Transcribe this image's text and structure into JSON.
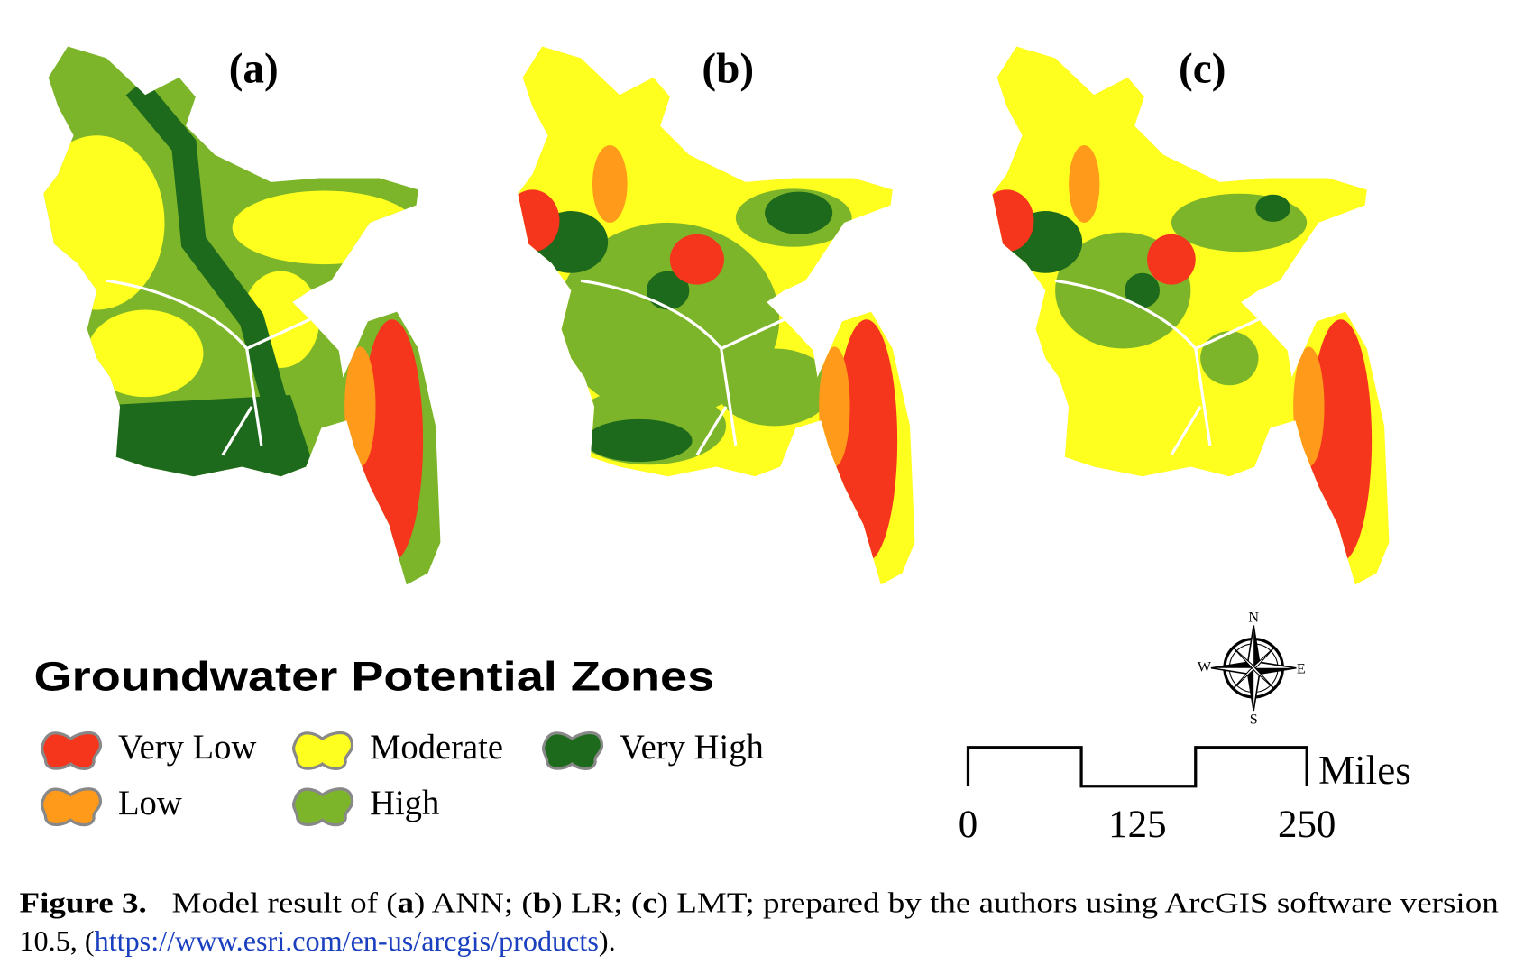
{
  "panels": [
    {
      "label": "(a)"
    },
    {
      "label": "(b)"
    },
    {
      "label": "(c)"
    }
  ],
  "legend": {
    "title": "Groundwater Potential Zones",
    "items": [
      {
        "label": "Very Low",
        "color": "#f5361c"
      },
      {
        "label": "Low",
        "color": "#ff9a1a"
      },
      {
        "label": "Moderate",
        "color": "#ffff1f"
      },
      {
        "label": "High",
        "color": "#7db52a"
      },
      {
        "label": "Very High",
        "color": "#1e6a1c"
      }
    ]
  },
  "compass": {
    "n": "N",
    "s": "S",
    "e": "E",
    "w": "W"
  },
  "scale_bar": {
    "ticks": [
      "0",
      "125",
      "250"
    ],
    "unit": "Miles"
  },
  "caption": {
    "line1": [
      {
        "text": "Figure 3.",
        "bold": true
      },
      {
        "text": "   Model result of ("
      },
      {
        "text": "a",
        "bold": true
      },
      {
        "text": ") ANN; ("
      },
      {
        "text": "b",
        "bold": true
      },
      {
        "text": ") LR; ("
      },
      {
        "text": "c",
        "bold": true
      },
      {
        "text": ") LMT; prepared by the authors using ArcGIS software version"
      }
    ],
    "line2": [
      {
        "text": "10.5, ("
      },
      {
        "text": "https://www.esri.com/en-us/arcgis/products",
        "link": true
      },
      {
        "text": ")."
      }
    ]
  }
}
